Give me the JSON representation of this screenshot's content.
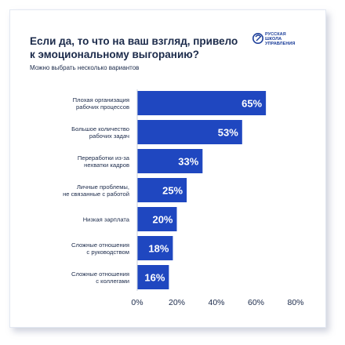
{
  "header": {
    "title": "Если да, то что на ваш взгляд, привело\nк эмоциональному выгоранию?",
    "subtitle": "Можно выбрать несколько вариантов"
  },
  "logo": {
    "lines": [
      "РУССКАЯ",
      "ШКОЛА",
      "УПРАВЛЕНИЯ"
    ]
  },
  "colors": {
    "bar": "#1f47c0",
    "bar_label": "#ffffff",
    "text": "#1b2a4a",
    "axis": "#c7cfdd"
  },
  "chart_data": {
    "type": "bar",
    "orientation": "horizontal",
    "categories": [
      "Плохая организация\nрабочих процессов",
      "Большое количество\nрабочих задач",
      "Переработки из-за\nнехватки кадров",
      "Личные проблемы,\nне связанные с работой",
      "Низкая зарплата",
      "Сложные отношения\nс руководством",
      "Сложные отношения\nс коллегами"
    ],
    "values": [
      65,
      53,
      33,
      25,
      20,
      18,
      16
    ],
    "data_labels": [
      "65%",
      "53%",
      "33%",
      "25%",
      "20%",
      "18%",
      "16%"
    ],
    "xlim": [
      0,
      80
    ],
    "xticks": [
      0,
      20,
      40,
      60,
      80
    ],
    "xtick_labels": [
      "0%",
      "20%",
      "40%",
      "60%",
      "80%"
    ],
    "grid": false
  }
}
